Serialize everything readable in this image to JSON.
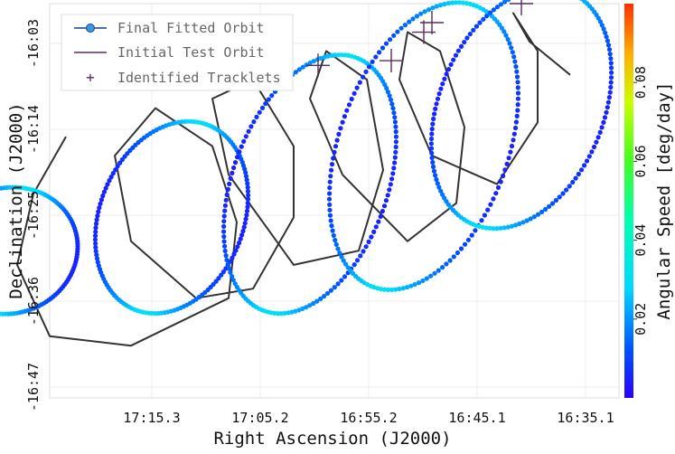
{
  "chart_data": {
    "type": "scatter",
    "xlabel": "Right Ascension (J2000)",
    "ylabel": "Declination (J2000)",
    "colorbar_label": "Angular Speed [deg/day]",
    "x_ticks": [
      "17:15.3",
      "17:05.2",
      "16:55.2",
      "16:45.1",
      "16:35.1"
    ],
    "y_ticks": [
      "-16:03",
      "-16:14",
      "-16:25",
      "-16:36",
      "-16:47"
    ],
    "colorbar_ticks": [
      "0.02",
      "0.04",
      "0.06",
      "0.08"
    ],
    "colorbar_range": [
      0.0,
      0.1
    ],
    "x_units": "minutes of RA (17h-prefixed, increasing to the left)",
    "x_range": [
      17.2,
      16.5
    ],
    "y_range": [
      -16.83,
      -16.0
    ],
    "x_inverted": true,
    "grid": true,
    "legend": {
      "position": "top-left",
      "entries": [
        "Final Fitted Orbit",
        "Initial Test Orbit",
        "Identified Tracklets"
      ]
    },
    "series": [
      {
        "name": "Final Fitted Orbit",
        "kind": "points-colored-by-speed",
        "loops": [
          {
            "center_ra": 17.25,
            "center_dec": -16.52,
            "ra_radius": 0.095,
            "dec_radius": 0.13,
            "tilt": 0.55
          },
          {
            "center_ra": 17.05,
            "center_dec": -16.45,
            "ra_radius": 0.1,
            "dec_radius": 0.2,
            "tilt": 0.5
          },
          {
            "center_ra": 16.88,
            "center_dec": -16.38,
            "ra_radius": 0.11,
            "dec_radius": 0.27,
            "tilt": 0.55
          },
          {
            "center_ra": 16.74,
            "center_dec": -16.3,
            "ra_radius": 0.12,
            "dec_radius": 0.3,
            "tilt": 0.55
          },
          {
            "center_ra": 16.62,
            "center_dec": -16.22,
            "ra_radius": 0.12,
            "dec_radius": 0.25,
            "tilt": 0.6
          }
        ],
        "speed_min": 0.005,
        "speed_max": 0.032
      },
      {
        "name": "Initial Test Orbit",
        "kind": "line",
        "color": "#333333",
        "points": [
          [
            17.18,
            -16.28
          ],
          [
            17.22,
            -16.4
          ],
          [
            17.24,
            -16.55
          ],
          [
            17.2,
            -16.7
          ],
          [
            17.1,
            -16.72
          ],
          [
            16.98,
            -16.62
          ],
          [
            16.97,
            -16.46
          ],
          [
            17.0,
            -16.3
          ],
          [
            17.07,
            -16.22
          ],
          [
            17.12,
            -16.32
          ],
          [
            17.1,
            -16.5
          ],
          [
            17.02,
            -16.62
          ],
          [
            16.95,
            -16.6
          ],
          [
            16.9,
            -16.45
          ],
          [
            16.9,
            -16.3
          ],
          [
            16.95,
            -16.16
          ],
          [
            17.0,
            -16.2
          ],
          [
            16.98,
            -16.36
          ],
          [
            16.9,
            -16.55
          ],
          [
            16.82,
            -16.52
          ],
          [
            16.79,
            -16.35
          ],
          [
            16.81,
            -16.16
          ],
          [
            16.86,
            -16.1
          ],
          [
            16.88,
            -16.2
          ],
          [
            16.84,
            -16.36
          ],
          [
            16.76,
            -16.5
          ],
          [
            16.7,
            -16.42
          ],
          [
            16.69,
            -16.26
          ],
          [
            16.72,
            -16.1
          ],
          [
            16.76,
            -16.06
          ],
          [
            16.77,
            -16.16
          ],
          [
            16.73,
            -16.32
          ],
          [
            16.65,
            -16.38
          ],
          [
            16.6,
            -16.25
          ],
          [
            16.6,
            -16.1
          ],
          [
            16.63,
            -16.02
          ],
          [
            16.61,
            -16.08
          ],
          [
            16.56,
            -16.15
          ]
        ]
      },
      {
        "name": "Identified Tracklets",
        "kind": "markers",
        "color": "#5a2a5a",
        "points": [
          [
            16.87,
            -16.13
          ],
          [
            16.78,
            -16.12
          ],
          [
            16.74,
            -16.06
          ],
          [
            16.73,
            -16.04
          ],
          [
            16.62,
            -16.0
          ]
        ]
      }
    ]
  }
}
